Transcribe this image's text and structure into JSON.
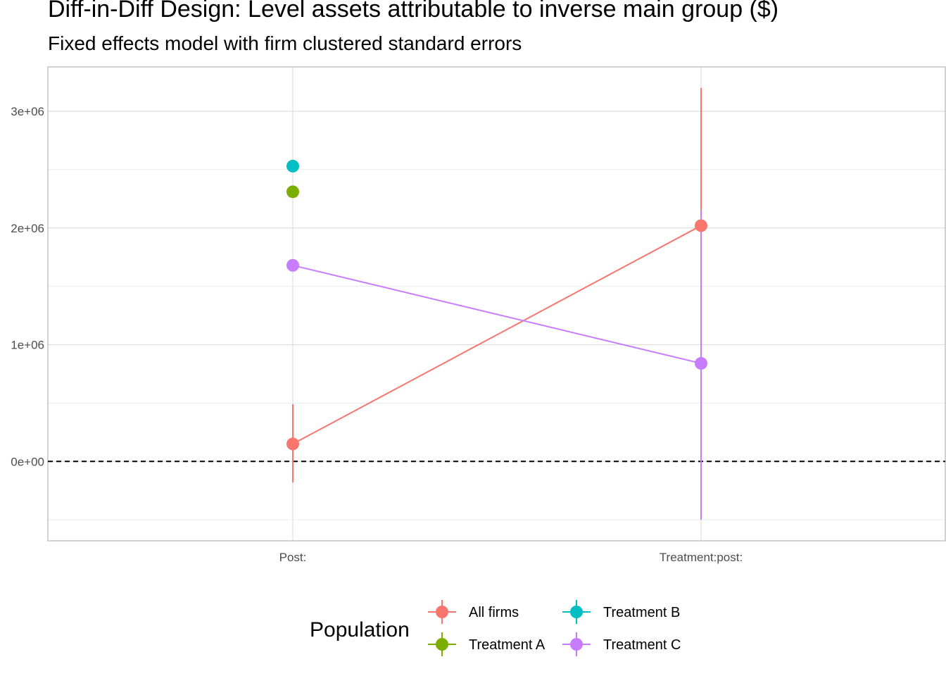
{
  "title": "Diff-in-Diff Design: Level assets attributable to inverse main group  ($)",
  "subtitle": "Fixed effects model with firm clustered standard errors",
  "chart_data": {
    "type": "scatter",
    "categories": [
      "Post:",
      "Treatment:post:"
    ],
    "y_ticks": [
      0,
      1000000,
      2000000,
      3000000
    ],
    "y_tick_labels": [
      "0e+00",
      "1e+06",
      "2e+06",
      "3e+06"
    ],
    "ylim": [
      -680000,
      3380000
    ],
    "reference_line": {
      "y": 0,
      "style": "dashed",
      "color": "#000000"
    },
    "grid": true,
    "xlabel": "",
    "ylabel": "",
    "legend": {
      "title": "Population",
      "position": "bottom"
    },
    "series": [
      {
        "name": "All firms",
        "color": "#F8766D",
        "points": [
          {
            "x": "Post:",
            "y": 150000,
            "lo": -180000,
            "hi": 490000
          },
          {
            "x": "Treatment:post:",
            "y": 2020000,
            "lo": 800000,
            "hi": 3200000
          }
        ],
        "connect": true
      },
      {
        "name": "Treatment A",
        "color": "#7CAE00",
        "points": [
          {
            "x": "Post:",
            "y": 2310000
          }
        ],
        "connect": false
      },
      {
        "name": "Treatment B",
        "color": "#00BFC4",
        "points": [
          {
            "x": "Post:",
            "y": 2530000
          }
        ],
        "connect": false
      },
      {
        "name": "Treatment C",
        "color": "#C77CFF",
        "points": [
          {
            "x": "Post:",
            "y": 1680000
          },
          {
            "x": "Treatment:post:",
            "y": 840000,
            "lo": -500000,
            "hi": 2150000
          }
        ],
        "connect": true
      }
    ]
  }
}
